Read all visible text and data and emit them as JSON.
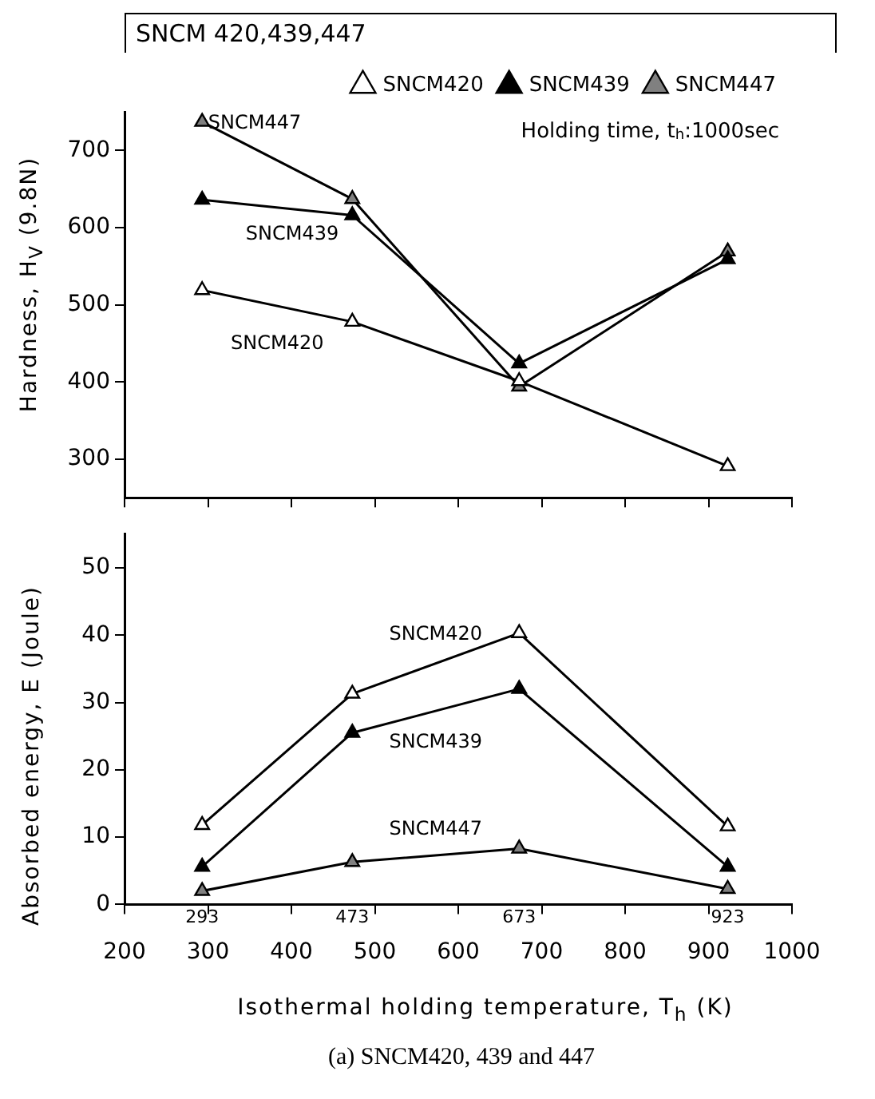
{
  "chart_data": [
    {
      "type": "line",
      "title": "SNCM 420,439,447",
      "ylabel": "Hardness, H$_{V}$ (9.8N)",
      "x": [
        293,
        473,
        673,
        923
      ],
      "xlim": [
        200,
        1000
      ],
      "xticks": [
        200,
        300,
        400,
        500,
        600,
        700,
        800,
        900,
        1000
      ],
      "ylim": [
        250,
        750
      ],
      "yticks": [
        300,
        400,
        500,
        600,
        700
      ],
      "tick_labels": "y",
      "grid": false,
      "legend": "top right",
      "marker": "triangle",
      "line_style": "solid",
      "series": [
        {
          "name": "SNCM420",
          "color": "#ffffff",
          "values": [
            519,
            478,
            401,
            291
          ]
        },
        {
          "name": "SNCM439",
          "color": "#000000",
          "values": [
            636,
            616,
            424,
            559
          ]
        },
        {
          "name": "SNCM447",
          "color": "#808080",
          "values": [
            737,
            637,
            394,
            569
          ]
        }
      ],
      "annotations": [
        "Holding time, t$_{h}$:1000sec"
      ]
    },
    {
      "type": "line",
      "xlabel": "Isothermal holding temperature, T$_{h}$ (K)",
      "ylabel": "Absorbed energy, E (Joule)",
      "x": [
        293,
        473,
        673,
        923
      ],
      "xlim": [
        200,
        1000
      ],
      "xticks": [
        200,
        300,
        400,
        500,
        600,
        700,
        800,
        900,
        1000
      ],
      "x2lim": [
        200,
        1000
      ],
      "x2ticks": [
        293,
        473,
        673,
        923
      ],
      "ylim": [
        0,
        55
      ],
      "yticks": [
        0,
        10,
        20,
        30,
        40,
        50
      ],
      "grid": false,
      "marker": "triangle",
      "line_style": "solid",
      "series": [
        {
          "name": "SNCM420",
          "color": "#ffffff",
          "values": [
            11.8,
            31.3,
            40.3,
            11.6
          ]
        },
        {
          "name": "SNCM439",
          "color": "#000000",
          "values": [
            5.6,
            25.5,
            32.0,
            5.6
          ]
        },
        {
          "name": "SNCM447",
          "color": "#808080",
          "values": [
            2.0,
            6.3,
            8.3,
            2.3
          ]
        }
      ],
      "annotations": [
        "(a) SNCM420, 439 and 447"
      ]
    }
  ]
}
